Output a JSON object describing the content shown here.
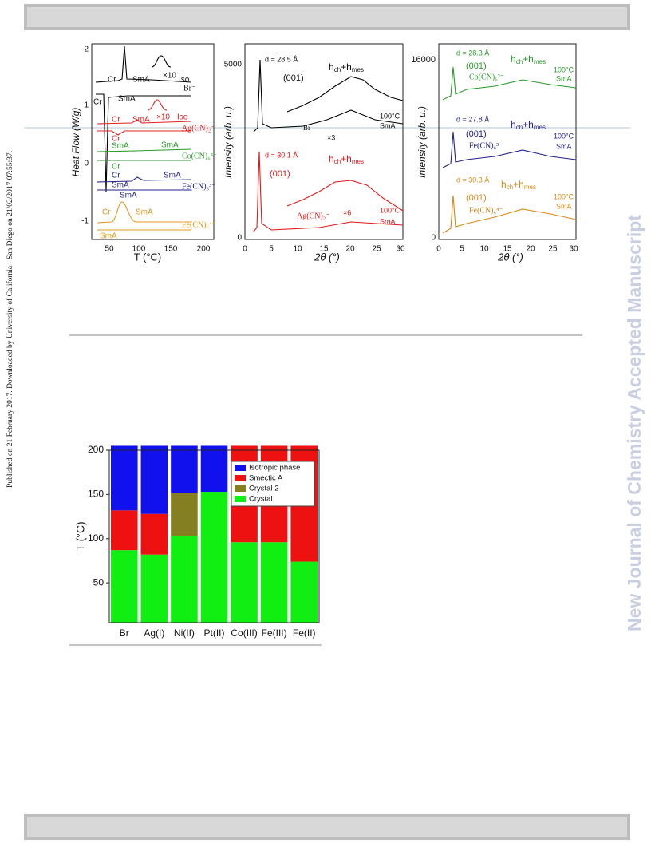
{
  "side_note": "Published on 21 February 2017. Downloaded by University of California - San Diego on 21/02/2017 07:55:37.",
  "watermark": "New Journal of Chemistry Accepted Manuscript",
  "figure_1": {
    "dsc": {
      "y_label": "Heat Flow  (W/g)",
      "x_label": "T (°C)",
      "yticks": [
        "2",
        "1",
        "0",
        "-1"
      ],
      "xticks": [
        "50",
        "100",
        "150",
        "200"
      ],
      "labels": [
        "Cr",
        "SmA",
        "Iso",
        "×10",
        "Br⁻",
        "Cr",
        "SmA",
        "Cr",
        "SmA",
        "×10",
        "Iso",
        "Ag(CN)₂⁻",
        "Cr",
        "SmA",
        "Co(CN)₆³⁻",
        "SmA",
        "Cr",
        "SmA",
        "Fe(CN)₆³⁻",
        "SmA",
        "Cr",
        "SmA",
        "Fe(CN)₆⁴⁻",
        "SmA",
        "Cr",
        "SmA"
      ]
    },
    "xrd_left": {
      "y_label": "Intensity  (arb. u.)",
      "x_label": "2θ  (°)",
      "yticks": [
        "5000",
        "0"
      ],
      "xticks": [
        "0",
        "5",
        "10",
        "15",
        "20",
        "25",
        "30"
      ],
      "peak_top": [
        "h",
        "ch",
        "+h",
        "mes"
      ],
      "peak_bottom": [
        "h",
        "ch",
        "+h",
        "mes"
      ],
      "labels": [
        "d = 28.5 Å",
        "(001)",
        "100°C",
        "×3",
        "Br",
        "SmA",
        "d = 30.1 Å",
        "(001)",
        "Ag(CN)₂⁻",
        "×6",
        "100°C",
        "SmA"
      ]
    },
    "xrd_right": {
      "y_label": "Intensity  (arb. u.)",
      "x_label": "2θ  (°)",
      "yticks": [
        "16000",
        "0"
      ],
      "xticks": [
        "0",
        "5",
        "10",
        "15",
        "20",
        "25",
        "30"
      ],
      "peak_1": [
        "h",
        "ch",
        "+h",
        "mes"
      ],
      "peak_2": [
        "h",
        "ch",
        "+h",
        "mes"
      ],
      "peak_3": [
        "h",
        "ch",
        "+h",
        "mes"
      ],
      "labels": [
        "d = 28.3 Å",
        "(001)",
        "Co(CN)₆³⁻",
        "100°C",
        "SmA",
        "d = 27.8 Å",
        "(001)",
        "Fe(CN)₆³⁻",
        "100°C",
        "SmA",
        "d = 30.3 Å",
        "(001)",
        "Fe(CN)₆⁴⁻",
        "100°C",
        "SmA"
      ]
    }
  },
  "chart_data": {
    "type": "stacked_bar",
    "y_label": "T  (°C)",
    "categories": [
      "Br",
      "Ag(I)",
      "Ni(II)",
      "Pt(II)",
      "Co(III)",
      "Fe(III)",
      "Fe(II)"
    ],
    "series": [
      {
        "name": "Crystal",
        "color": "#11ee11",
        "values": [
          82,
          77,
          98,
          148,
          91,
          91,
          69
        ]
      },
      {
        "name": "Crystal 2",
        "color": "#848022",
        "values": [
          null,
          null,
          49,
          null,
          null,
          null,
          null
        ]
      },
      {
        "name": "Smectic A",
        "color": "#ee1111",
        "values": [
          45,
          46,
          null,
          null,
          109,
          109,
          131
        ]
      },
      {
        "name": "Isotropic phase",
        "color": "#1111ee",
        "values": [
          73,
          77,
          53,
          52,
          null,
          null,
          null
        ]
      }
    ],
    "ylim": [
      5,
      200
    ],
    "yticks": [
      50,
      100,
      150,
      200
    ],
    "legend": "upper right"
  }
}
